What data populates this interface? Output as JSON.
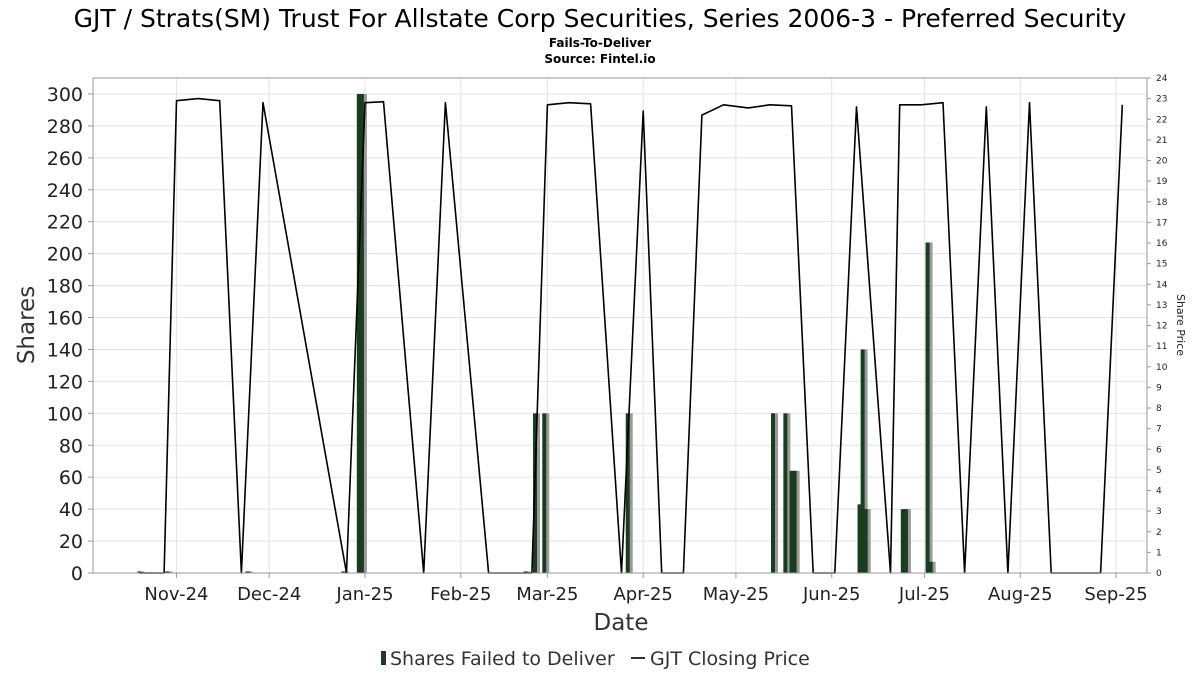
{
  "chart_data": {
    "type": "bar",
    "title": "GJT / Strats(SM) Trust For Allstate Corp Securities, Series 2006-3 - Preferred Security",
    "subtitle": "Fails-To-Deliver",
    "source": "Source: Fintel.io",
    "xlabel": "Date",
    "ylabel": "Shares",
    "y2label": "Share Price",
    "x_range": [
      "2024-10-05",
      "2025-09-11"
    ],
    "ylim": [
      0,
      310
    ],
    "y2lim": [
      0,
      24
    ],
    "y_ticks": [
      0,
      20,
      40,
      60,
      80,
      100,
      120,
      140,
      160,
      180,
      200,
      220,
      240,
      260,
      280,
      300
    ],
    "y2_ticks": [
      0,
      1,
      2,
      3,
      4,
      5,
      6,
      7,
      8,
      9,
      10,
      11,
      12,
      13,
      14,
      15,
      16,
      17,
      18,
      19,
      20,
      21,
      22,
      23,
      24
    ],
    "x_ticks": [
      {
        "label": "Nov-24",
        "date": "2024-11-01"
      },
      {
        "label": "Dec-24",
        "date": "2024-12-01"
      },
      {
        "label": "Jan-25",
        "date": "2025-01-01"
      },
      {
        "label": "Feb-25",
        "date": "2025-02-01"
      },
      {
        "label": "Mar-25",
        "date": "2025-03-01"
      },
      {
        "label": "Apr-25",
        "date": "2025-04-01"
      },
      {
        "label": "May-25",
        "date": "2025-05-01"
      },
      {
        "label": "Jun-25",
        "date": "2025-06-01"
      },
      {
        "label": "Jul-25",
        "date": "2025-07-01"
      },
      {
        "label": "Aug-25",
        "date": "2025-08-01"
      },
      {
        "label": "Sep-25",
        "date": "2025-09-01"
      }
    ],
    "grid": true,
    "legend_position": "bottom",
    "series": [
      {
        "name": "Shares Failed to Deliver",
        "type": "bar",
        "axis": "left",
        "color": "#1a3d1f",
        "points": [
          {
            "date": "2024-10-20",
            "value": 1
          },
          {
            "date": "2024-10-29",
            "value": 1
          },
          {
            "date": "2024-11-24",
            "value": 1
          },
          {
            "date": "2024-12-25",
            "value": 1
          },
          {
            "date": "2024-12-30",
            "value": 300
          },
          {
            "date": "2024-12-31",
            "value": 300
          },
          {
            "date": "2025-02-22",
            "value": 1
          },
          {
            "date": "2025-02-25",
            "value": 100
          },
          {
            "date": "2025-02-28",
            "value": 100
          },
          {
            "date": "2025-03-27",
            "value": 100
          },
          {
            "date": "2025-05-13",
            "value": 100
          },
          {
            "date": "2025-05-17",
            "value": 100
          },
          {
            "date": "2025-05-19",
            "value": 64
          },
          {
            "date": "2025-05-20",
            "value": 64
          },
          {
            "date": "2025-06-10",
            "value": 43
          },
          {
            "date": "2025-06-11",
            "value": 140
          },
          {
            "date": "2025-06-12",
            "value": 40
          },
          {
            "date": "2025-06-24",
            "value": 40
          },
          {
            "date": "2025-06-25",
            "value": 40
          },
          {
            "date": "2025-07-02",
            "value": 207
          },
          {
            "date": "2025-07-03",
            "value": 7
          }
        ]
      },
      {
        "name": "GJT Closing Price",
        "type": "line",
        "axis": "right",
        "color": "#000000",
        "points": [
          {
            "date": "2024-10-20",
            "value": 0
          },
          {
            "date": "2024-10-28",
            "value": 0
          },
          {
            "date": "2024-11-01",
            "value": 22.9
          },
          {
            "date": "2024-11-08",
            "value": 23.0
          },
          {
            "date": "2024-11-15",
            "value": 22.9
          },
          {
            "date": "2024-11-22",
            "value": 0
          },
          {
            "date": "2024-11-29",
            "value": 22.8
          },
          {
            "date": "2024-12-26",
            "value": 0
          },
          {
            "date": "2025-01-01",
            "value": 22.8
          },
          {
            "date": "2025-01-07",
            "value": 22.85
          },
          {
            "date": "2025-01-20",
            "value": 0
          },
          {
            "date": "2025-01-27",
            "value": 22.8
          },
          {
            "date": "2025-02-10",
            "value": 0
          },
          {
            "date": "2025-02-24",
            "value": 0
          },
          {
            "date": "2025-03-01",
            "value": 22.7
          },
          {
            "date": "2025-03-08",
            "value": 22.8
          },
          {
            "date": "2025-03-15",
            "value": 22.75
          },
          {
            "date": "2025-03-25",
            "value": 0
          },
          {
            "date": "2025-04-01",
            "value": 22.4
          },
          {
            "date": "2025-04-07",
            "value": 0
          },
          {
            "date": "2025-04-14",
            "value": 0
          },
          {
            "date": "2025-04-20",
            "value": 22.2
          },
          {
            "date": "2025-04-27",
            "value": 22.7
          },
          {
            "date": "2025-05-05",
            "value": 22.55
          },
          {
            "date": "2025-05-12",
            "value": 22.7
          },
          {
            "date": "2025-05-19",
            "value": 22.65
          },
          {
            "date": "2025-05-26",
            "value": 0
          },
          {
            "date": "2025-06-02",
            "value": 0
          },
          {
            "date": "2025-06-09",
            "value": 22.6
          },
          {
            "date": "2025-06-20",
            "value": 0
          },
          {
            "date": "2025-06-23",
            "value": 22.7
          },
          {
            "date": "2025-06-30",
            "value": 22.7
          },
          {
            "date": "2025-07-07",
            "value": 22.8
          },
          {
            "date": "2025-07-14",
            "value": 0
          },
          {
            "date": "2025-07-21",
            "value": 22.6
          },
          {
            "date": "2025-07-28",
            "value": 0
          },
          {
            "date": "2025-08-04",
            "value": 22.8
          },
          {
            "date": "2025-08-11",
            "value": 0
          },
          {
            "date": "2025-08-18",
            "value": 0
          },
          {
            "date": "2025-08-27",
            "value": 0
          },
          {
            "date": "2025-09-03",
            "value": 22.7
          }
        ]
      }
    ]
  }
}
